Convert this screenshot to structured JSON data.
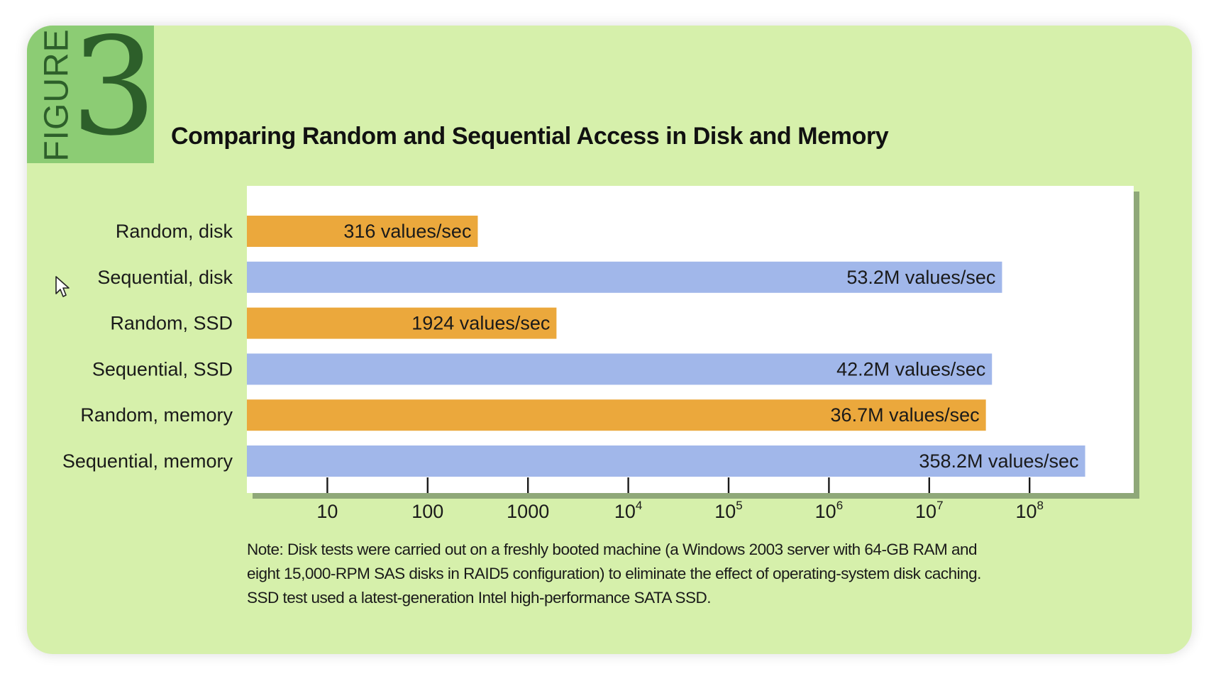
{
  "figure": {
    "word": "FIGURE",
    "number": "3"
  },
  "chart_data": {
    "type": "bar",
    "orientation": "horizontal",
    "title": "Comparing Random and Sequential Access in Disk and Memory",
    "xlabel": "",
    "ylabel": "",
    "x_scale": "log",
    "xlim": [
      1,
      1000000000
    ],
    "x_ticks": [
      {
        "value": 10,
        "base": "10",
        "exp": ""
      },
      {
        "value": 100,
        "base": "100",
        "exp": ""
      },
      {
        "value": 1000,
        "base": "1000",
        "exp": ""
      },
      {
        "value": 10000,
        "base": "10",
        "exp": "4"
      },
      {
        "value": 100000,
        "base": "10",
        "exp": "5"
      },
      {
        "value": 1000000,
        "base": "10",
        "exp": "6"
      },
      {
        "value": 10000000,
        "base": "10",
        "exp": "7"
      },
      {
        "value": 100000000,
        "base": "10",
        "exp": "8"
      }
    ],
    "categories": [
      "Random, disk",
      "Sequential, disk",
      "Random, SSD",
      "Sequential, SSD",
      "Random, memory",
      "Sequential, memory"
    ],
    "values": [
      316,
      53200000,
      1924,
      42200000,
      36700000,
      358200000
    ],
    "value_labels": [
      "316 values/sec",
      "53.2M values/sec",
      "1924 values/sec",
      "42.2M values/sec",
      "36.7M values/sec",
      "358.2M values/sec"
    ],
    "access_types": [
      "random",
      "sequential",
      "random",
      "sequential",
      "random",
      "sequential"
    ],
    "colors": {
      "random": "#eba83c",
      "sequential": "#a1b7ea"
    },
    "grid": false,
    "legend": "none"
  },
  "note": {
    "lines": [
      "Note: Disk tests were carried out on a freshly booted machine (a Windows 2003 server with 64-GB RAM and",
      "eight 15,000-RPM SAS disks in RAID5 configuration) to eliminate the effect of operating-system disk caching.",
      "SSD test used a latest-generation Intel high-performance SATA SSD."
    ]
  }
}
